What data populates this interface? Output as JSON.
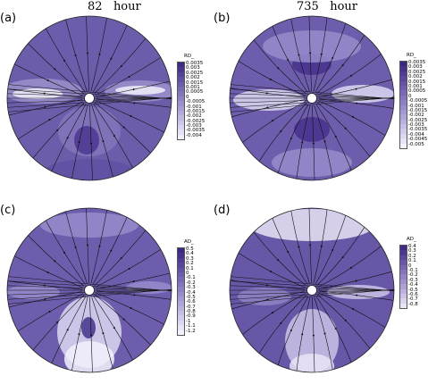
{
  "titles": {
    "left": "82   hour",
    "right": "735   hour"
  },
  "panels": [
    {
      "label": "(a)",
      "colorbar_title": "RD_",
      "ticks": [
        "0.0035",
        "0.003",
        "0.0025",
        "0.002",
        "0.0015",
        "0.001",
        "0.0005",
        "0",
        "-0.0005",
        "-0.001",
        "-0.0015",
        "-0.002",
        "-0.0025",
        "-0.003",
        "-0.0035",
        "-0.004"
      ],
      "colors": [
        "#402a86",
        "#4b368f",
        "#564398",
        "#6150a2",
        "#6c5dab",
        "#7869b3",
        "#8475bb",
        "#9082c3",
        "#9c8fcb",
        "#a89cd3",
        "#b4aadb",
        "#c0b8e2",
        "#ccc6e9",
        "#d9d4ef",
        "#e6e2f5",
        "#f2f0fa"
      ]
    },
    {
      "label": "(b)",
      "colorbar_title": "RD_",
      "ticks": [
        "0.0035",
        "0.003",
        "0.0025",
        "0.002",
        "0.0015",
        "0.001",
        "0.0005",
        "0",
        "-0.0005",
        "-0.001",
        "-0.0015",
        "-0.002",
        "-0.0025",
        "-0.003",
        "-0.0035",
        "-0.004",
        "-0.0045",
        "-0.005"
      ],
      "colors": [
        "#3c2683",
        "#46318c",
        "#503c94",
        "#5a479d",
        "#6452a5",
        "#6e5dad",
        "#7868b5",
        "#8374bd",
        "#8e80c4",
        "#998ccb",
        "#a498d2",
        "#afa4d8",
        "#bab1df",
        "#c5bee5",
        "#d0cbeb",
        "#dcd8f1",
        "#e7e4f6",
        "#f3f1fb"
      ]
    },
    {
      "label": "(c)",
      "colorbar_title": "AD_",
      "ticks": [
        "0.5",
        "0.4",
        "0.3",
        "0.2",
        "0.1",
        "0",
        "-0.1",
        "-0.2",
        "-0.3",
        "-0.4",
        "-0.5",
        "-0.6",
        "-0.7",
        "-0.8",
        "-0.9",
        "-1",
        "-1.1",
        "-1.2"
      ],
      "colors": [
        "#3c2683",
        "#46318c",
        "#503c94",
        "#5a479d",
        "#6452a5",
        "#6e5dad",
        "#7868b5",
        "#8374bd",
        "#8e80c4",
        "#998ccb",
        "#a498d2",
        "#afa4d8",
        "#bab1df",
        "#c5bee5",
        "#d0cbeb",
        "#dcd8f1",
        "#e7e4f6",
        "#f3f1fb"
      ]
    },
    {
      "label": "(d)",
      "colorbar_title": "AD_",
      "ticks": [
        "0.4",
        "0.3",
        "0.2",
        "0.1",
        "0",
        "-0.1",
        "-0.2",
        "-0.3",
        "-0.4",
        "-0.5",
        "-0.6",
        "-0.7",
        "-0.8"
      ],
      "colors": [
        "#3e2985",
        "#4c3890",
        "#5a479c",
        "#6856a7",
        "#7665b1",
        "#8474bb",
        "#9283c4",
        "#a092cc",
        "#aea2d5",
        "#bcb2dd",
        "#cbc2e6",
        "#dad3ee",
        "#e9e4f6"
      ]
    }
  ]
}
